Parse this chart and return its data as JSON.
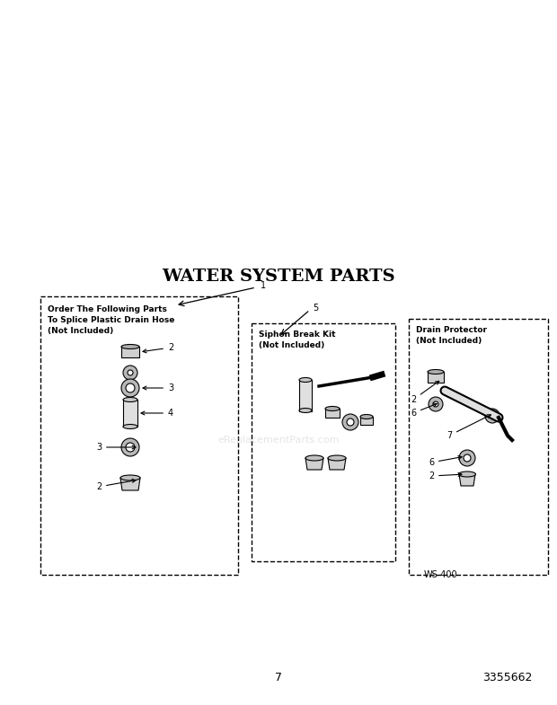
{
  "title": "WATER SYSTEM PARTS",
  "title_fontsize": 14,
  "title_bold": true,
  "bg_color": "#ffffff",
  "text_color": "#000000",
  "page_number": "7",
  "part_number": "3355662",
  "diagram_code": "WS-400",
  "box1_title": "Order The Following Parts\nTo Splice Plastic Drain Hose\n(Not Included)",
  "box2_title": "Siphon Break Kit\n(Not Included)",
  "box3_title": "Drain Protector\n(Not Included)",
  "label1": "1",
  "label2": "2",
  "label3": "3",
  "label4": "4",
  "label5": "5",
  "label6": "6",
  "label7": "7",
  "watermark_text": "eReplacementParts.com"
}
